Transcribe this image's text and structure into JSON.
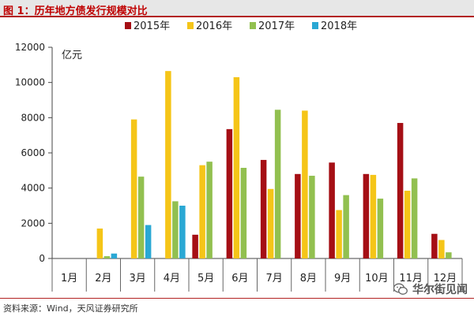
{
  "title": "图 1：历年地方债发行规模对比",
  "source": "资料来源：Wind，天风证券研究所",
  "watermark": "华尔街见闻",
  "chart_data": {
    "type": "bar",
    "unit_label": "亿元",
    "ylim": [
      0,
      12000
    ],
    "yticks": [
      0,
      2000,
      4000,
      6000,
      8000,
      10000,
      12000
    ],
    "categories": [
      "1月",
      "2月",
      "3月",
      "4月",
      "5月",
      "6月",
      "7月",
      "8月",
      "9月",
      "10月",
      "11月",
      "12月"
    ],
    "legend_position": "top-center",
    "series": [
      {
        "name": "2015年",
        "color": "#a50f15",
        "values": [
          0,
          0,
          0,
          0,
          1350,
          7350,
          5600,
          4800,
          5450,
          4800,
          7700,
          1400
        ]
      },
      {
        "name": "2016年",
        "color": "#f5c518",
        "values": [
          0,
          1700,
          7900,
          10650,
          5300,
          10300,
          3950,
          8400,
          2750,
          4750,
          3850,
          1050
        ]
      },
      {
        "name": "2017年",
        "color": "#92c050",
        "values": [
          0,
          130,
          4650,
          3250,
          5500,
          5150,
          8450,
          4700,
          3600,
          3400,
          4550,
          350
        ]
      },
      {
        "name": "2018年",
        "color": "#2aa8d4",
        "values": [
          0,
          280,
          1900,
          3000,
          null,
          null,
          null,
          null,
          null,
          null,
          null,
          null
        ]
      }
    ]
  }
}
